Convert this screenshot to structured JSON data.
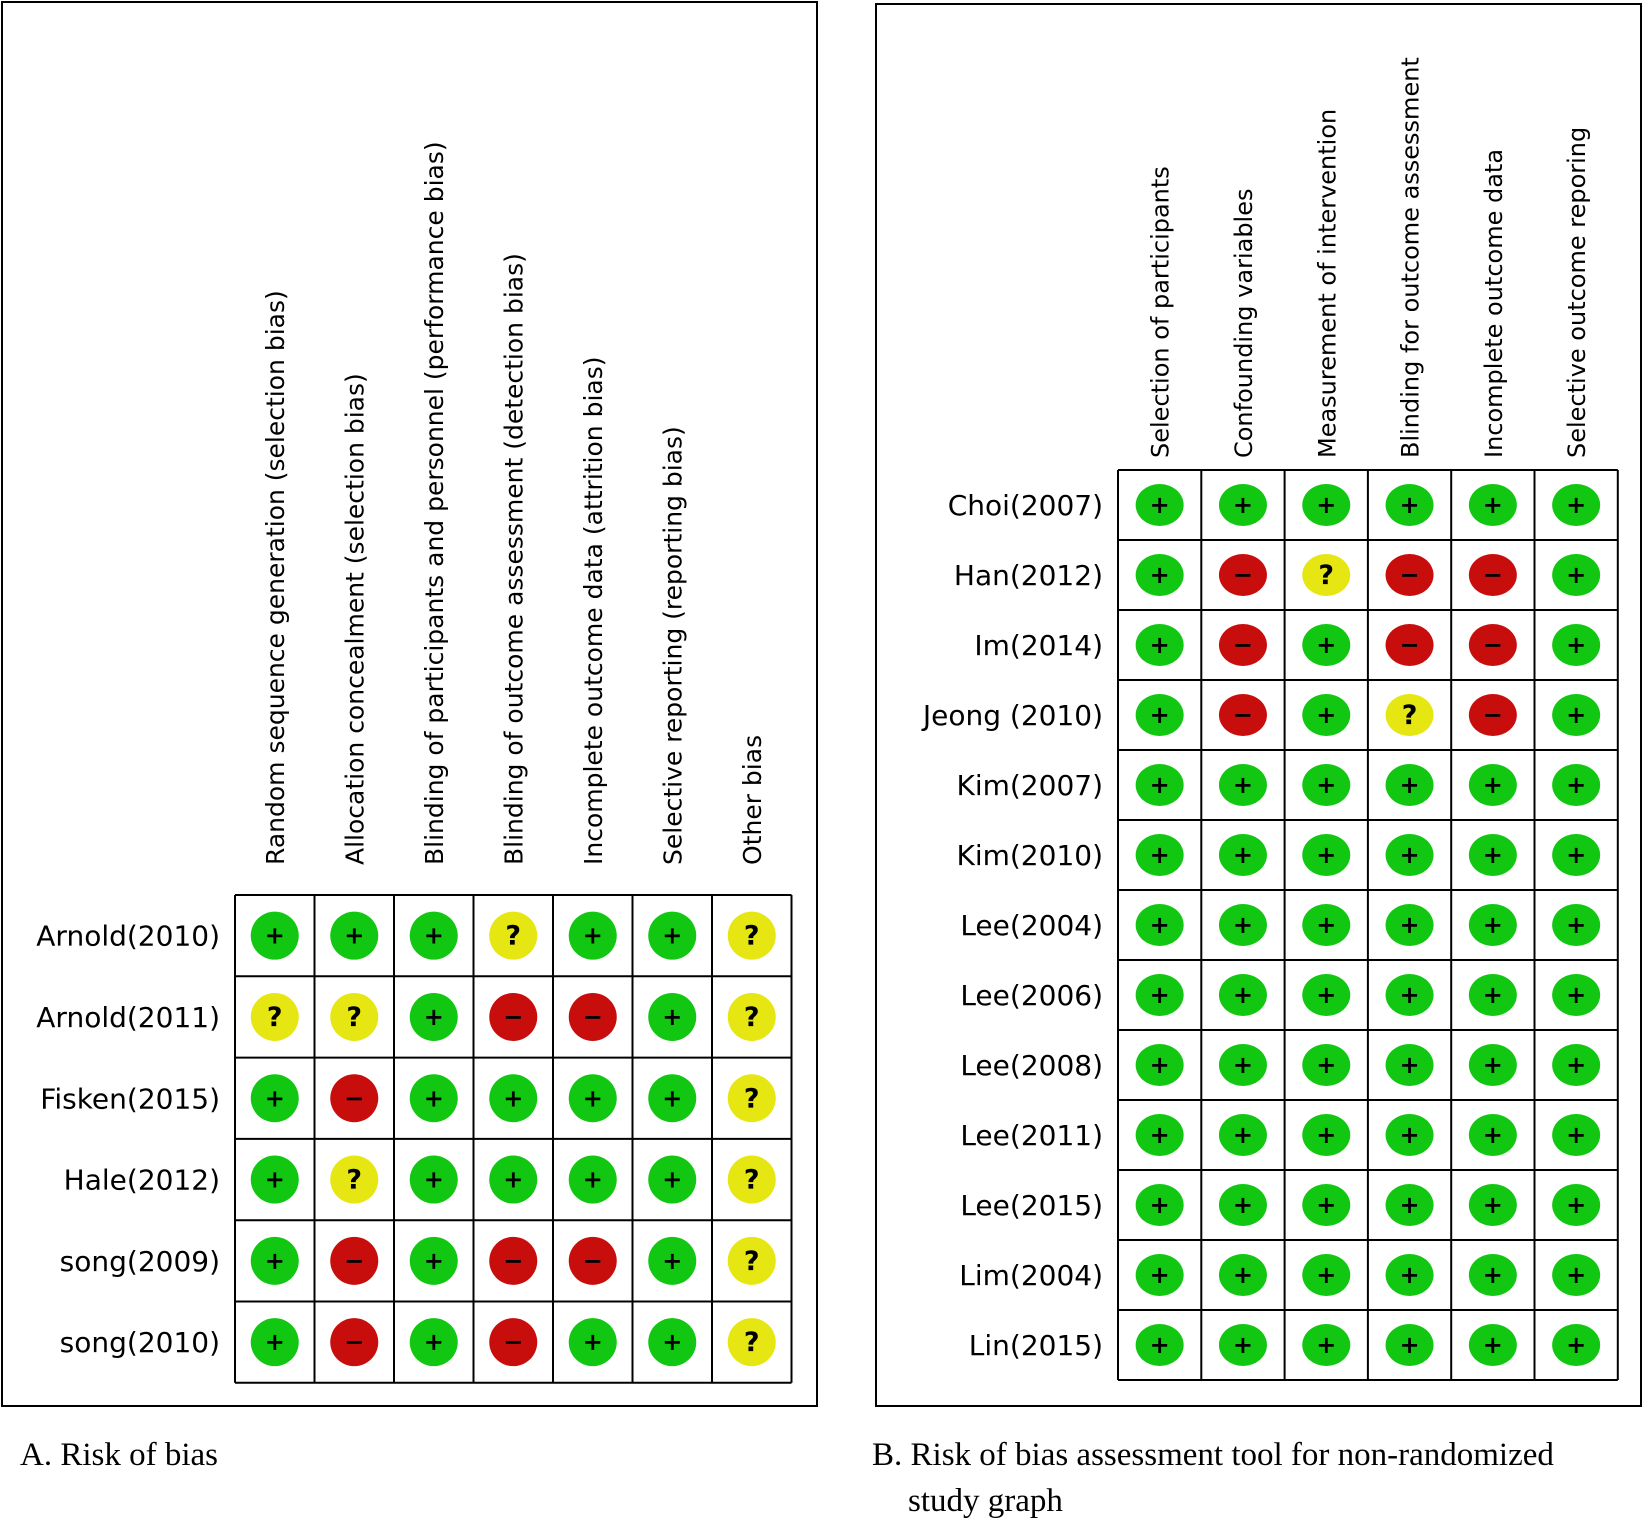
{
  "symbols": {
    "low": "+",
    "unclear": "?",
    "high": "−"
  },
  "colors": {
    "low": "#11c711",
    "unclear": "#e6e612",
    "high": "#c80d0d",
    "grid": "#000000",
    "frame": "#000000"
  },
  "chart_data": [
    {
      "type": "table",
      "title": "",
      "caption": "A. Risk of bias",
      "columns": [
        "Random sequence generation (selection bias)",
        "Allocation concealment (selection bias)",
        "Blinding of participants and personnel (performance bias)",
        "Blinding of outcome assessment (detection bias)",
        "Incomplete outcome data (attrition bias)",
        "Selective reporting (reporting bias)",
        "Other bias"
      ],
      "rows": [
        {
          "study": "Arnold(2010)",
          "ratings": [
            "low",
            "low",
            "low",
            "unclear",
            "low",
            "low",
            "unclear"
          ]
        },
        {
          "study": "Arnold(2011)",
          "ratings": [
            "unclear",
            "unclear",
            "low",
            "high",
            "high",
            "low",
            "unclear"
          ]
        },
        {
          "study": "Fisken(2015)",
          "ratings": [
            "low",
            "high",
            "low",
            "low",
            "low",
            "low",
            "unclear"
          ]
        },
        {
          "study": "Hale(2012)",
          "ratings": [
            "low",
            "unclear",
            "low",
            "low",
            "low",
            "low",
            "unclear"
          ]
        },
        {
          "study": "song(2009)",
          "ratings": [
            "low",
            "high",
            "low",
            "high",
            "high",
            "low",
            "unclear"
          ]
        },
        {
          "study": "song(2010)",
          "ratings": [
            "low",
            "high",
            "low",
            "high",
            "low",
            "low",
            "unclear"
          ]
        }
      ]
    },
    {
      "type": "table",
      "title": "",
      "caption": [
        "B. Risk of bias assessment tool for non-randomized",
        "study graph"
      ],
      "columns": [
        "Selection of participants",
        "Confounding variables",
        "Measurement of intervention",
        "Blinding for outcome assessment",
        "Incomplete outcome data",
        "Selective outcome reporing"
      ],
      "rows": [
        {
          "study": "Choi(2007)",
          "ratings": [
            "low",
            "low",
            "low",
            "low",
            "low",
            "low"
          ]
        },
        {
          "study": "Han(2012)",
          "ratings": [
            "low",
            "high",
            "unclear",
            "high",
            "high",
            "low"
          ]
        },
        {
          "study": "Im(2014)",
          "ratings": [
            "low",
            "high",
            "low",
            "high",
            "high",
            "low"
          ]
        },
        {
          "study": "Jeong (2010)",
          "ratings": [
            "low",
            "high",
            "low",
            "unclear",
            "high",
            "low"
          ]
        },
        {
          "study": "Kim(2007)",
          "ratings": [
            "low",
            "low",
            "low",
            "low",
            "low",
            "low"
          ]
        },
        {
          "study": "Kim(2010)",
          "ratings": [
            "low",
            "low",
            "low",
            "low",
            "low",
            "low"
          ]
        },
        {
          "study": "Lee(2004)",
          "ratings": [
            "low",
            "low",
            "low",
            "low",
            "low",
            "low"
          ]
        },
        {
          "study": "Lee(2006)",
          "ratings": [
            "low",
            "low",
            "low",
            "low",
            "low",
            "low"
          ]
        },
        {
          "study": "Lee(2008)",
          "ratings": [
            "low",
            "low",
            "low",
            "low",
            "low",
            "low"
          ]
        },
        {
          "study": "Lee(2011)",
          "ratings": [
            "low",
            "low",
            "low",
            "low",
            "low",
            "low"
          ]
        },
        {
          "study": "Lee(2015)",
          "ratings": [
            "low",
            "low",
            "low",
            "low",
            "low",
            "low"
          ]
        },
        {
          "study": "Lim(2004)",
          "ratings": [
            "low",
            "low",
            "low",
            "low",
            "low",
            "low"
          ]
        },
        {
          "study": "Lin(2015)",
          "ratings": [
            "low",
            "low",
            "low",
            "low",
            "low",
            "low"
          ]
        }
      ]
    }
  ]
}
